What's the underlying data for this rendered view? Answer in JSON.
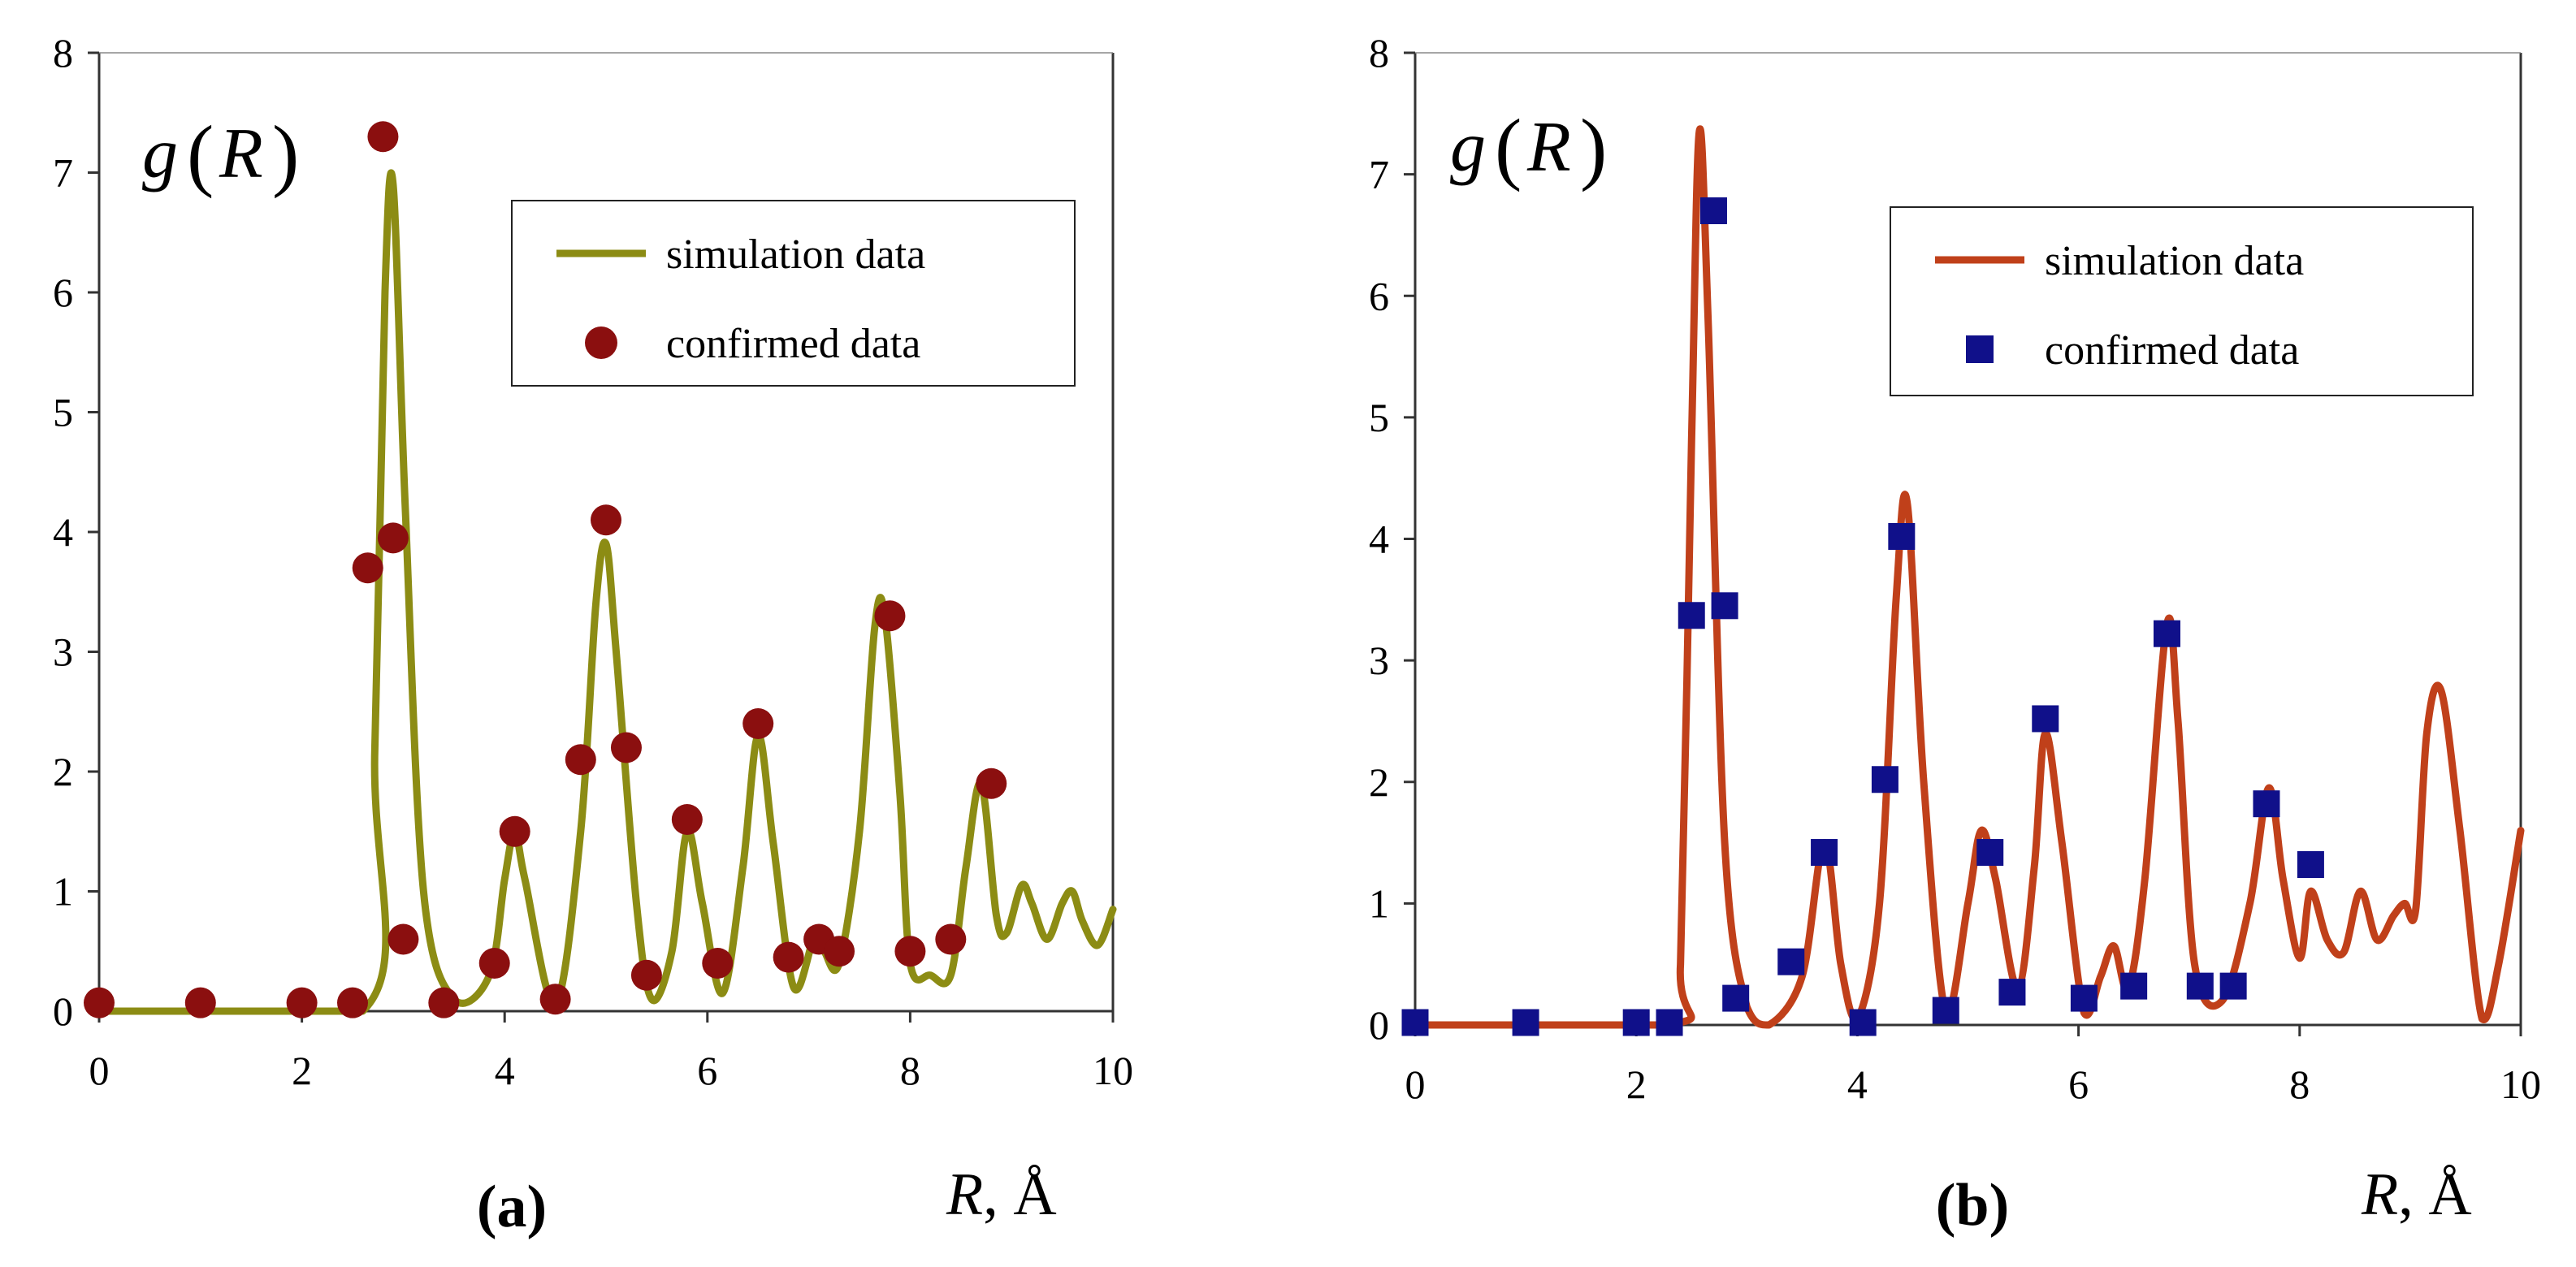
{
  "chart_data": [
    {
      "type": "line",
      "panel_label": "(a)",
      "ylabel_func": "g",
      "ylabel_var": "R",
      "xlabel_var": "R",
      "xlabel_unit": ", Å",
      "xlim": [
        0,
        10
      ],
      "ylim": [
        0,
        8
      ],
      "x_ticks": [
        "0",
        "2",
        "4",
        "6",
        "8",
        "10"
      ],
      "y_ticks": [
        "0",
        "1",
        "2",
        "3",
        "4",
        "5",
        "6",
        "7",
        "8"
      ],
      "legend_position": "top-right",
      "grid": false,
      "series": [
        {
          "name": "simulation data",
          "kind": "line",
          "color": "#8c8c14",
          "x": [
            0,
            2.6,
            2.72,
            2.82,
            2.9,
            3.02,
            3.2,
            3.5,
            3.85,
            4.0,
            4.1,
            4.2,
            4.5,
            4.75,
            4.9,
            5.0,
            5.1,
            5.3,
            5.45,
            5.65,
            5.8,
            5.95,
            6.15,
            6.35,
            6.5,
            6.65,
            6.85,
            7.05,
            7.15,
            7.3,
            7.5,
            7.65,
            7.75,
            7.9,
            8.0,
            8.2,
            8.4,
            8.55,
            8.7,
            8.85,
            8.95,
            9.1,
            9.2,
            9.35,
            9.5,
            9.6,
            9.7,
            9.85,
            10.0
          ],
          "y": [
            0,
            0,
            2.2,
            6.0,
            6.9,
            4.2,
            1.0,
            0.1,
            0.3,
            1.1,
            1.5,
            1.1,
            0.05,
            1.5,
            3.4,
            3.9,
            3.0,
            0.9,
            0.1,
            0.5,
            1.5,
            0.9,
            0.15,
            1.2,
            2.3,
            1.4,
            0.2,
            0.6,
            0.5,
            0.4,
            1.5,
            3.2,
            3.3,
            1.8,
            0.4,
            0.3,
            0.3,
            1.2,
            1.9,
            0.8,
            0.65,
            1.05,
            0.9,
            0.6,
            0.9,
            1.0,
            0.75,
            0.55,
            0.85
          ]
        },
        {
          "name": "confirmed data",
          "kind": "scatter",
          "marker": "circle",
          "color": "#8b0f0f",
          "x": [
            0,
            1,
            2,
            2.5,
            2.65,
            2.8,
            2.9,
            3.0,
            3.4,
            3.9,
            4.1,
            4.5,
            4.75,
            5.0,
            5.2,
            5.4,
            5.8,
            6.1,
            6.5,
            6.8,
            7.1,
            7.3,
            7.8,
            8.0,
            8.4,
            8.8
          ],
          "y": [
            0.07,
            0.07,
            0.07,
            0.07,
            3.7,
            7.3,
            3.95,
            0.6,
            0.07,
            0.4,
            1.5,
            0.1,
            2.1,
            4.1,
            2.2,
            0.3,
            1.6,
            0.4,
            2.4,
            0.45,
            0.6,
            0.5,
            3.3,
            0.5,
            0.6,
            1.9
          ]
        }
      ]
    },
    {
      "type": "line",
      "panel_label": "(b)",
      "ylabel_func": "g",
      "ylabel_var": "R",
      "xlabel_var": "R",
      "xlabel_unit": ", Å",
      "xlim": [
        0,
        10
      ],
      "ylim": [
        0,
        8
      ],
      "x_ticks": [
        "0",
        "2",
        "4",
        "6",
        "8",
        "10"
      ],
      "y_ticks": [
        "0",
        "1",
        "2",
        "3",
        "4",
        "5",
        "6",
        "7",
        "8"
      ],
      "legend_position": "top-right",
      "grid": false,
      "series": [
        {
          "name": "simulation data",
          "kind": "line",
          "color": "#c0401a",
          "x": [
            0,
            2.3,
            2.4,
            2.5,
            2.57,
            2.65,
            2.8,
            3.0,
            3.2,
            3.5,
            3.7,
            3.85,
            4.0,
            4.2,
            4.35,
            4.45,
            4.6,
            4.8,
            5.0,
            5.12,
            5.25,
            5.45,
            5.6,
            5.7,
            5.85,
            6.05,
            6.2,
            6.32,
            6.45,
            6.6,
            6.8,
            6.9,
            7.05,
            7.3,
            7.55,
            7.72,
            7.85,
            8.0,
            8.1,
            8.25,
            8.4,
            8.55,
            8.7,
            8.85,
            8.95,
            9.05,
            9.15,
            9.28,
            9.45,
            9.65,
            9.8,
            10.0
          ],
          "y": [
            0,
            0,
            0.5,
            4.8,
            7.35,
            5.8,
            1.5,
            0.15,
            0.0,
            0.4,
            1.5,
            0.5,
            0.05,
            1.0,
            3.5,
            4.3,
            2.0,
            0.1,
            1.0,
            1.6,
            1.2,
            0.3,
            1.3,
            2.4,
            1.5,
            0.1,
            0.4,
            0.65,
            0.3,
            1.2,
            3.3,
            2.5,
            0.5,
            0.2,
            1.0,
            1.95,
            1.2,
            0.55,
            1.1,
            0.7,
            0.6,
            1.1,
            0.7,
            0.9,
            1.0,
            0.95,
            2.4,
            2.75,
            1.6,
            0.05,
            0.5,
            1.6
          ]
        },
        {
          "name": "confirmed data",
          "kind": "scatter",
          "marker": "square",
          "color": "#10108a",
          "x": [
            0,
            1,
            2,
            2.3,
            2.5,
            2.7,
            2.8,
            2.9,
            3.4,
            3.7,
            4.05,
            4.25,
            4.4,
            4.8,
            5.2,
            5.4,
            5.7,
            6.05,
            6.5,
            6.8,
            7.1,
            7.4,
            7.7,
            8.1
          ],
          "y": [
            0.02,
            0.02,
            0.02,
            0.02,
            3.37,
            6.7,
            3.45,
            0.22,
            0.52,
            1.42,
            0.02,
            2.02,
            4.02,
            0.12,
            1.42,
            0.27,
            2.52,
            0.22,
            0.32,
            3.22,
            0.32,
            0.32,
            1.82,
            1.32
          ]
        }
      ]
    }
  ]
}
